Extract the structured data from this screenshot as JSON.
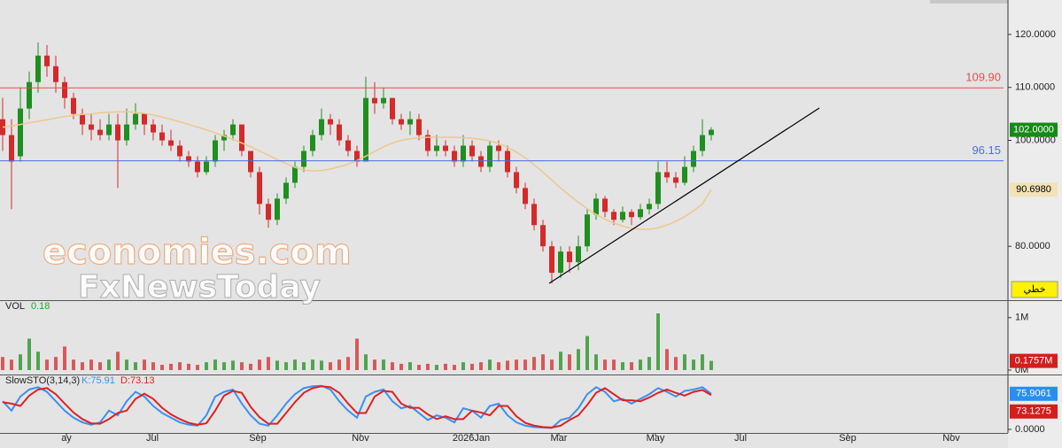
{
  "chart_data": [
    {
      "type": "candlestick",
      "up_color": "#1f8f1f",
      "down_color": "#d42a2a",
      "xlim": [
        -0.3,
        113.5
      ],
      "ylim": [
        70,
        126.5
      ],
      "yticks": [
        {
          "value": 80,
          "label": "80.0000"
        },
        {
          "value": 100,
          "label": "100.0000"
        },
        {
          "value": 110,
          "label": "110.0000"
        },
        {
          "value": 120,
          "label": "120.0000"
        }
      ],
      "open": [
        104,
        101,
        97,
        106,
        111,
        116,
        114,
        111,
        108,
        105,
        103,
        102,
        101,
        103,
        100,
        103,
        105,
        103,
        101.5,
        100,
        99,
        97,
        96,
        94,
        96,
        100,
        101,
        103,
        98,
        94,
        88,
        85,
        89,
        92,
        95,
        98,
        101,
        104,
        103,
        100,
        98,
        96,
        108,
        107,
        108,
        104,
        103,
        104,
        101,
        98,
        99,
        98,
        96,
        99,
        97,
        95,
        99,
        98,
        94,
        91,
        88,
        84,
        80,
        75,
        79,
        77,
        80,
        86,
        89,
        86.5,
        85,
        86.5,
        85.5,
        87,
        88,
        94,
        93,
        92,
        95,
        98,
        101
      ],
      "high": [
        108,
        104,
        110,
        113,
        118.5,
        118,
        116,
        112,
        109,
        106,
        105,
        104,
        105,
        105,
        106,
        107,
        105,
        104,
        103,
        102,
        100,
        98,
        97,
        97,
        101,
        102,
        104,
        103,
        98,
        95,
        89,
        90,
        93,
        96,
        99,
        102,
        106,
        105,
        104,
        101,
        99,
        112,
        111,
        110,
        108,
        105,
        105.5,
        105,
        102,
        101,
        100,
        99,
        101,
        100,
        98,
        100,
        100,
        99,
        95,
        92,
        89,
        85,
        81,
        80,
        80,
        82,
        87,
        90,
        89.5,
        87,
        87.5,
        87,
        88,
        89,
        96,
        96,
        94,
        97,
        99,
        104,
        102.5
      ],
      "low": [
        98,
        87,
        96,
        104,
        109,
        112,
        109,
        106,
        104,
        101,
        100,
        100,
        100,
        91,
        99,
        102,
        101,
        100,
        99,
        98,
        96,
        95,
        93,
        93.5,
        95,
        98,
        100,
        97,
        93,
        86,
        83.5,
        84,
        88,
        91,
        94,
        97,
        100,
        101,
        99,
        97,
        95,
        96,
        105,
        106,
        103,
        102,
        101,
        100,
        97,
        97,
        97,
        95,
        95,
        96,
        94,
        94,
        96,
        93,
        90,
        87,
        83,
        79,
        73,
        74,
        75,
        75.5,
        79,
        85,
        85.5,
        84,
        84.5,
        84,
        85,
        86,
        87,
        92,
        91,
        91.5,
        94,
        97,
        100
      ],
      "close": [
        101,
        96,
        106,
        111,
        116,
        114,
        111,
        108,
        105,
        103,
        102,
        101,
        103,
        100,
        103,
        105,
        103,
        101.5,
        100,
        99,
        97,
        96,
        94,
        96,
        100,
        101,
        103,
        98,
        94,
        88,
        85,
        89,
        92,
        95,
        98,
        101,
        104,
        103,
        100,
        98,
        96,
        108,
        107,
        108,
        104,
        103,
        104,
        101,
        98,
        99,
        98,
        96,
        99,
        97,
        95,
        99,
        98,
        94,
        91,
        88,
        84,
        80,
        75,
        79,
        77,
        80,
        86,
        89,
        86.5,
        85,
        86.5,
        85.5,
        87,
        88,
        94,
        93,
        92,
        95,
        98,
        101,
        102
      ],
      "ma": {
        "color": "#ecc98c",
        "values": [
          102.5,
          102.7,
          103,
          103.3,
          103.6,
          103.9,
          104.2,
          104.5,
          104.7,
          104.9,
          105,
          105.2,
          105.3,
          105.4,
          105.4,
          105.3,
          105.1,
          104.8,
          104.4,
          104,
          103.5,
          103,
          102.5,
          102,
          101.4,
          100.8,
          100.2,
          99.5,
          98.8,
          98,
          97.2,
          96.4,
          95.6,
          94.9,
          94.4,
          94.2,
          94.3,
          94.6,
          95,
          95.5,
          96.2,
          97,
          97.9,
          98.8,
          99.5,
          100,
          100.3,
          100.5,
          100.6,
          100.6,
          100.6,
          100.6,
          100.5,
          100.4,
          100.2,
          99.9,
          99.4,
          98.7,
          97.8,
          96.7,
          95.4,
          94,
          92.5,
          91,
          89.6,
          88.3,
          87.1,
          86,
          85.1,
          84.4,
          83.8,
          83.4,
          83.2,
          83.2,
          83.5,
          84,
          84.7,
          85.6,
          86.7,
          88,
          90.698
        ]
      },
      "hlines": [
        {
          "value": 109.9,
          "label": "109.90",
          "color": "#e0504f"
        },
        {
          "value": 96.15,
          "color": "#4a6ee0"
        }
      ],
      "trendline": {
        "x": [
          61.7,
          92.2
        ],
        "values": [
          73,
          106.1
        ],
        "color": "#000000"
      },
      "readouts": [
        {
          "value": 102,
          "label": "102.0000",
          "color": "#168a16",
          "text_color": "#ffffff"
        },
        {
          "value": 90.698,
          "label": "90.6980",
          "color": "#f2e2b4",
          "text_color": "#000000"
        }
      ]
    },
    {
      "type": "bar",
      "title": "VOL",
      "last": 0.18,
      "last_color": "#2aa02a",
      "ylim": [
        0,
        1.3
      ],
      "yticks": [
        {
          "value": 0,
          "label": "0M"
        },
        {
          "value": 1,
          "label": "1M"
        }
      ],
      "values": [
        0.25,
        0.2,
        0.3,
        0.6,
        0.35,
        0.2,
        0.25,
        0.45,
        0.2,
        0.15,
        0.2,
        0.15,
        0.2,
        0.35,
        0.2,
        0.15,
        0.2,
        0.15,
        0.1,
        0.12,
        0.15,
        0.12,
        0.1,
        0.15,
        0.2,
        0.15,
        0.18,
        0.15,
        0.12,
        0.2,
        0.25,
        0.18,
        0.15,
        0.2,
        0.15,
        0.2,
        0.18,
        0.15,
        0.2,
        0.25,
        0.6,
        0.3,
        0.2,
        0.2,
        0.15,
        0.12,
        0.15,
        0.1,
        0.12,
        0.1,
        0.12,
        0.1,
        0.15,
        0.12,
        0.15,
        0.2,
        0.15,
        0.18,
        0.2,
        0.2,
        0.25,
        0.3,
        0.2,
        0.35,
        0.3,
        0.4,
        0.65,
        0.3,
        0.2,
        0.2,
        0.15,
        0.15,
        0.2,
        0.25,
        1.08,
        0.4,
        0.25,
        0.3,
        0.2,
        0.3,
        0.1757
      ],
      "readouts": [
        {
          "value": 0.1757,
          "label": "0.1757M",
          "color": "#d41e1e",
          "text_color": "#ffffff"
        }
      ]
    },
    {
      "type": "line",
      "title": "SlowSTO(3,14,3)",
      "ylim": [
        0,
        100
      ],
      "yticks": [
        {
          "value": 0,
          "label": "0.0000"
        }
      ],
      "xticks": [
        {
          "value": 7.2,
          "label": "ay"
        },
        {
          "value": 16.9,
          "label": "Jul"
        },
        {
          "value": 28.8,
          "label": "Sep"
        },
        {
          "value": 40.4,
          "label": "Nov"
        },
        {
          "value": 52.9,
          "label": "2026Jan"
        },
        {
          "value": 62.8,
          "label": "Mar"
        },
        {
          "value": 73.7,
          "label": "May"
        },
        {
          "value": 83.3,
          "label": "Jul"
        },
        {
          "value": 95.4,
          "label": "Sep"
        },
        {
          "value": 107.1,
          "label": "Nov"
        }
      ],
      "series": [
        {
          "name": "K:75.91",
          "color": "#3b8ff0",
          "values": [
            60,
            40,
            70,
            85,
            90,
            80,
            60,
            40,
            25,
            15,
            10,
            15,
            40,
            30,
            60,
            80,
            70,
            50,
            35,
            25,
            15,
            10,
            8,
            30,
            70,
            80,
            85,
            55,
            30,
            12,
            8,
            30,
            55,
            75,
            88,
            92,
            93,
            85,
            60,
            40,
            25,
            70,
            80,
            85,
            60,
            45,
            50,
            35,
            20,
            30,
            25,
            15,
            45,
            40,
            25,
            50,
            55,
            30,
            15,
            8,
            5,
            4,
            3,
            20,
            25,
            45,
            75,
            90,
            80,
            60,
            65,
            55,
            65,
            75,
            88,
            80,
            70,
            82,
            85,
            90,
            75.91
          ]
        },
        {
          "name": "D:73.13",
          "color": "#e02020",
          "values": [
            58,
            55,
            50,
            72,
            85,
            88,
            75,
            55,
            36,
            22,
            13,
            12,
            22,
            35,
            40,
            65,
            76,
            65,
            46,
            32,
            22,
            14,
            10,
            13,
            40,
            72,
            82,
            78,
            48,
            26,
            12,
            12,
            35,
            58,
            78,
            88,
            92,
            90,
            78,
            55,
            35,
            35,
            70,
            82,
            80,
            55,
            46,
            46,
            32,
            22,
            28,
            22,
            22,
            40,
            36,
            30,
            50,
            50,
            28,
            14,
            8,
            5,
            4,
            8,
            20,
            30,
            52,
            78,
            88,
            75,
            62,
            62,
            60,
            68,
            78,
            85,
            78,
            72,
            80,
            84,
            73.13
          ]
        }
      ],
      "readouts": [
        {
          "value": 75.9061,
          "label": "75.9061",
          "color": "#2a8ef0",
          "text_color": "#ffffff"
        },
        {
          "value": 73.1275,
          "label": "73.1275",
          "color": "#d41e1e",
          "text_color": "#ffffff"
        }
      ]
    }
  ],
  "watermark": [
    "economies.com",
    "FxNewsToday"
  ],
  "button": "خطي"
}
